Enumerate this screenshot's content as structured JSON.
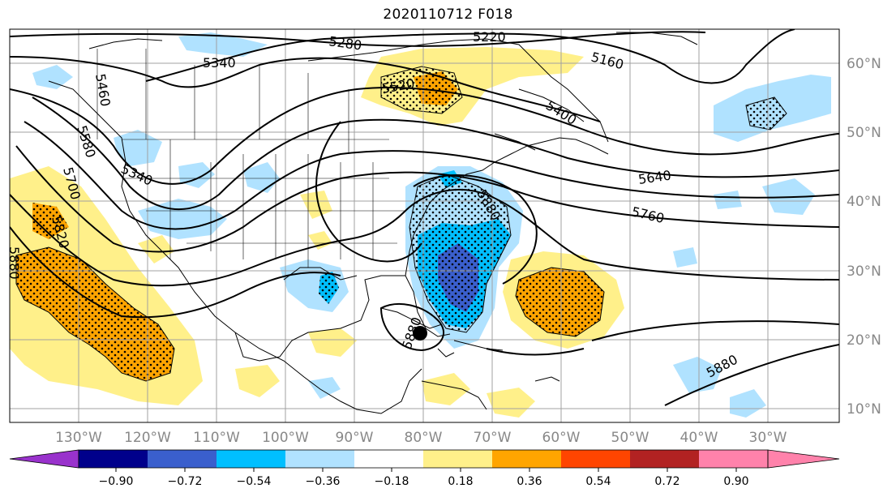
{
  "title": "2020110712 F018",
  "map": {
    "lon_labels": [
      "130°W",
      "120°W",
      "110°W",
      "100°W",
      "90°W",
      "80°W",
      "70°W",
      "60°W",
      "50°W",
      "40°W",
      "30°W"
    ],
    "lat_labels": [
      "60°N",
      "50°N",
      "40°N",
      "30°N",
      "20°N",
      "10°N"
    ],
    "contour_labels": [
      "5280",
      "5220",
      "5340",
      "5160",
      "5460",
      "5520",
      "5400",
      "5580",
      "5340",
      "5640",
      "5700",
      "5760",
      "5820",
      "5880",
      "5880",
      "5880",
      "5880"
    ],
    "marker": "storm-center-dot"
  },
  "colorbar": {
    "ticks": [
      "−0.90",
      "−0.72",
      "−0.54",
      "−0.36",
      "−0.18",
      "0.18",
      "0.36",
      "0.54",
      "0.72",
      "0.90"
    ],
    "colors": [
      "#9932cc",
      "#00008b",
      "#3a5fcd",
      "#00bfff",
      "#b0e2ff",
      "#ffffff",
      "#fff08a",
      "#ffa500",
      "#ff4500",
      "#b22222",
      "#ff82ab"
    ]
  }
}
